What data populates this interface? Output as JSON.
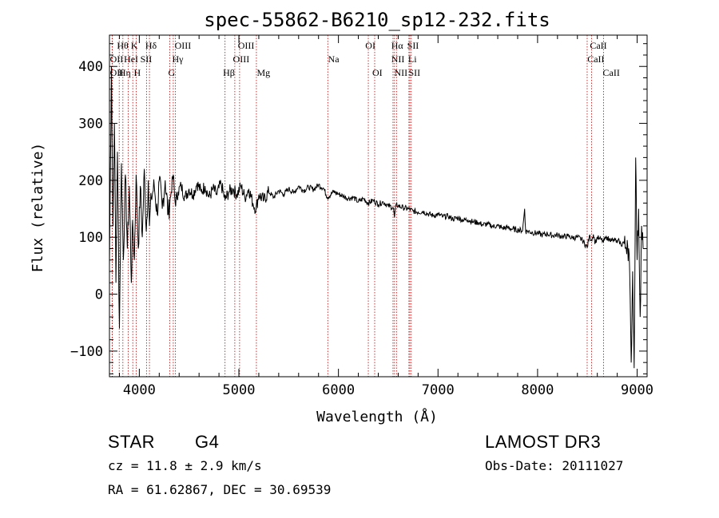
{
  "chart_data": {
    "type": "line",
    "title": "spec-55862-B6210_sp12-232.fits",
    "xlabel": "Wavelength (Å)",
    "ylabel": "Flux (relative)",
    "xlim": [
      3700,
      9100
    ],
    "ylim": [
      -145,
      455
    ],
    "x_ticks": [
      {
        "value": 4000,
        "label": "4000"
      },
      {
        "value": 5000,
        "label": "5000"
      },
      {
        "value": 6000,
        "label": "6000"
      },
      {
        "value": 7000,
        "label": "7000"
      },
      {
        "value": 8000,
        "label": "8000"
      },
      {
        "value": 9000,
        "label": "9000"
      }
    ],
    "y_ticks": [
      {
        "value": -100,
        "label": "−100"
      },
      {
        "value": 0,
        "label": "0"
      },
      {
        "value": 100,
        "label": "100"
      },
      {
        "value": 200,
        "label": "200"
      },
      {
        "value": 300,
        "label": "300"
      },
      {
        "value": 400,
        "label": "400"
      }
    ],
    "series": [
      {
        "name": "flux",
        "x": [
          3700,
          3720,
          3735,
          3750,
          3765,
          3780,
          3800,
          3820,
          3840,
          3860,
          3880,
          3900,
          3920,
          3933,
          3950,
          3968,
          3990,
          4010,
          4030,
          4050,
          4070,
          4090,
          4102,
          4120,
          4150,
          4180,
          4200,
          4230,
          4260,
          4290,
          4320,
          4340,
          4360,
          4390,
          4420,
          4460,
          4500,
          4540,
          4580,
          4620,
          4660,
          4700,
          4740,
          4780,
          4820,
          4861,
          4900,
          4940,
          4980,
          5020,
          5060,
          5100,
          5140,
          5172,
          5200,
          5250,
          5300,
          5350,
          5400,
          5450,
          5500,
          5550,
          5600,
          5650,
          5700,
          5750,
          5800,
          5850,
          5890,
          5950,
          6000,
          6050,
          6100,
          6150,
          6200,
          6250,
          6300,
          6350,
          6400,
          6450,
          6500,
          6550,
          6563,
          6580,
          6600,
          6650,
          6700,
          6750,
          6800,
          6850,
          6900,
          6950,
          7000,
          7050,
          7100,
          7150,
          7200,
          7250,
          7300,
          7350,
          7400,
          7450,
          7500,
          7550,
          7600,
          7650,
          7700,
          7750,
          7800,
          7850,
          7870,
          7880,
          7900,
          7950,
          8000,
          8050,
          8100,
          8150,
          8200,
          8250,
          8300,
          8350,
          8400,
          8450,
          8498,
          8520,
          8542,
          8560,
          8580,
          8600,
          8620,
          8640,
          8662,
          8680,
          8700,
          8720,
          8740,
          8760,
          8780,
          8800,
          8820,
          8840,
          8860,
          8880,
          8900,
          8920,
          8940,
          8955,
          8970,
          8985,
          9000,
          9015,
          9030,
          9045,
          9060
        ],
        "y": [
          50,
          400,
          120,
          300,
          20,
          250,
          -60,
          230,
          60,
          210,
          80,
          190,
          20,
          130,
          60,
          210,
          80,
          190,
          100,
          220,
          110,
          200,
          120,
          170,
          190,
          140,
          200,
          150,
          200,
          140,
          180,
          210,
          160,
          180,
          190,
          170,
          185,
          175,
          195,
          180,
          190,
          170,
          185,
          175,
          195,
          165,
          180,
          185,
          175,
          190,
          170,
          185,
          160,
          150,
          175,
          165,
          180,
          170,
          182,
          175,
          185,
          178,
          190,
          182,
          188,
          184,
          192,
          186,
          170,
          180,
          176,
          172,
          168,
          170,
          162,
          168,
          160,
          165,
          158,
          162,
          155,
          152,
          135,
          158,
          155,
          152,
          150,
          146,
          144,
          145,
          141,
          138,
          140,
          136,
          137,
          132,
          134,
          130,
          131,
          127,
          126,
          122,
          123,
          119,
          120,
          116,
          117,
          114,
          113,
          112,
          150,
          110,
          111,
          108,
          107,
          104,
          106,
          103,
          104,
          101,
          102,
          99,
          100,
          95,
          82,
          102,
          95,
          105,
          90,
          100,
          97,
          96,
          92,
          98,
          100,
          95,
          98,
          93,
          96,
          90,
          94,
          85,
          92,
          80,
          95,
          70,
          -120,
          40,
          -130,
          240,
          60,
          150,
          -40,
          120,
          80
        ]
      }
    ],
    "lines": [
      {
        "name": "Hθ",
        "wavelength": 3798
      },
      {
        "name": "OII",
        "wavelength": 3727
      },
      {
        "name": "OII",
        "wavelength": 3729
      },
      {
        "name": "Hη",
        "wavelength": 3835
      },
      {
        "name": "HeI",
        "wavelength": 3889
      },
      {
        "name": "K",
        "wavelength": 3934
      },
      {
        "name": "H",
        "wavelength": 3969
      },
      {
        "name": "SII",
        "wavelength": 4072
      },
      {
        "name": "Hδ",
        "wavelength": 4102
      },
      {
        "name": "OIII",
        "wavelength": 4363
      },
      {
        "name": "Hγ",
        "wavelength": 4341
      },
      {
        "name": "G",
        "wavelength": 4305
      },
      {
        "name": "Hβ",
        "wavelength": 4861
      },
      {
        "name": "OIII",
        "wavelength": 4959
      },
      {
        "name": "OIII",
        "wavelength": 5007
      },
      {
        "name": "Mg",
        "wavelength": 5176
      },
      {
        "name": "Na",
        "wavelength": 5893
      },
      {
        "name": "OI",
        "wavelength": 6300
      },
      {
        "name": "OI",
        "wavelength": 6364
      },
      {
        "name": "NII",
        "wavelength": 6548
      },
      {
        "name": "Hα",
        "wavelength": 6563
      },
      {
        "name": "NII",
        "wavelength": 6583
      },
      {
        "name": "Li",
        "wavelength": 6708
      },
      {
        "name": "SII",
        "wavelength": 6717
      },
      {
        "name": "SII",
        "wavelength": 6731
      },
      {
        "name": "CaII",
        "wavelength": 8498
      },
      {
        "name": "CaII",
        "wavelength": 8542
      },
      {
        "name": "CaII",
        "wavelength": 8662
      }
    ],
    "line_labels": [
      {
        "text": "Hθ",
        "wavelength": 3775,
        "row": 1
      },
      {
        "text": "K",
        "wavelength": 3915,
        "row": 1
      },
      {
        "text": "Hδ",
        "wavelength": 4060,
        "row": 1
      },
      {
        "text": "OIII",
        "wavelength": 4355,
        "row": 1
      },
      {
        "text": "OIII",
        "wavelength": 4990,
        "row": 1
      },
      {
        "text": "OI",
        "wavelength": 6270,
        "row": 1
      },
      {
        "text": "Hα",
        "wavelength": 6530,
        "row": 1
      },
      {
        "text": "SII",
        "wavelength": 6690,
        "row": 1
      },
      {
        "text": "CaII",
        "wavelength": 8525,
        "row": 1
      },
      {
        "text": "OII",
        "wavelength": 3705,
        "row": 2
      },
      {
        "text": "HeI",
        "wavelength": 3845,
        "row": 2
      },
      {
        "text": "SII",
        "wavelength": 4010,
        "row": 2
      },
      {
        "text": "Hγ",
        "wavelength": 4330,
        "row": 2
      },
      {
        "text": "OIII",
        "wavelength": 4940,
        "row": 2
      },
      {
        "text": "Na",
        "wavelength": 5895,
        "row": 2
      },
      {
        "text": "NII",
        "wavelength": 6530,
        "row": 2
      },
      {
        "text": "Li",
        "wavelength": 6700,
        "row": 2
      },
      {
        "text": "CaII",
        "wavelength": 8500,
        "row": 2
      },
      {
        "text": "OII",
        "wavelength": 3705,
        "row": 3
      },
      {
        "text": "Hη",
        "wavelength": 3795,
        "row": 3
      },
      {
        "text": "H",
        "wavelength": 3945,
        "row": 3
      },
      {
        "text": "G",
        "wavelength": 4290,
        "row": 3
      },
      {
        "text": "Hβ",
        "wavelength": 4840,
        "row": 3
      },
      {
        "text": "Mg",
        "wavelength": 5180,
        "row": 3
      },
      {
        "text": "OI",
        "wavelength": 6340,
        "row": 3
      },
      {
        "text": "NII",
        "wavelength": 6560,
        "row": 3
      },
      {
        "text": "SII",
        "wavelength": 6705,
        "row": 3
      },
      {
        "text": "CaII",
        "wavelength": 8655,
        "row": 3
      }
    ]
  },
  "info": {
    "class": "STAR",
    "subclass": "G4",
    "survey": "LAMOST DR3",
    "redshift": "cz = 11.8 ± 2.9 km/s",
    "obs_date": "Obs-Date: 20111027",
    "coords": "RA =  61.62867, DEC =  30.69539"
  }
}
